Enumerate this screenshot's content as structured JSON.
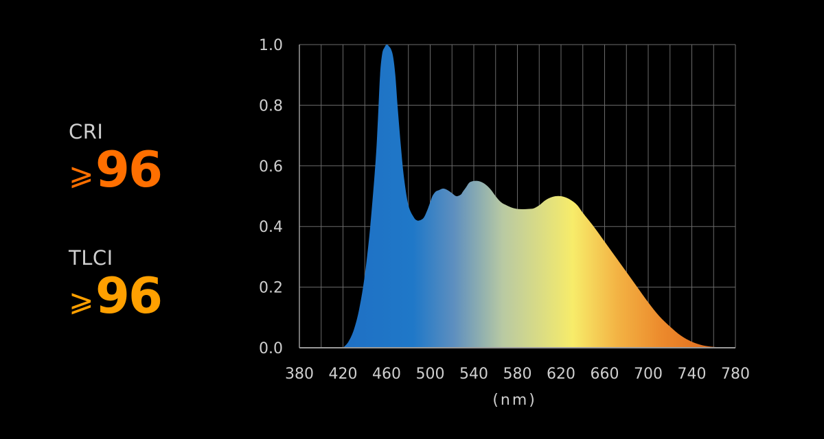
{
  "metrics": [
    {
      "label": "CRI",
      "symbol": "⩾",
      "value": "96",
      "color": "#ff6f00"
    },
    {
      "label": "TLCI",
      "symbol": "⩾",
      "value": "96",
      "color": "#ffa000"
    }
  ],
  "chart_data": {
    "type": "area",
    "title": "",
    "xlabel": "(nm)",
    "ylabel": "",
    "xlim": [
      380,
      780
    ],
    "ylim": [
      0,
      1.0
    ],
    "grid": true,
    "x_ticks": [
      "380",
      "420",
      "460",
      "500",
      "540",
      "580",
      "620",
      "660",
      "700",
      "740",
      "780"
    ],
    "y_ticks": [
      "0.0",
      "0.2",
      "0.4",
      "0.6",
      "0.8",
      "1.0"
    ],
    "series": [
      {
        "x": [
          420,
          425,
          430,
          435,
          440,
          445,
          450,
          452,
          454,
          456,
          458,
          460,
          462,
          464,
          466,
          468,
          470,
          473,
          476,
          480,
          485,
          488,
          490,
          493,
          495,
          498,
          500,
          502,
          505,
          508,
          512,
          516,
          520,
          524,
          528,
          530,
          533,
          536,
          540,
          544,
          548,
          552,
          556,
          560,
          565,
          570,
          575,
          580,
          585,
          590,
          595,
          600,
          605,
          610,
          615,
          620,
          625,
          630,
          635,
          640,
          650,
          660,
          670,
          680,
          690,
          700,
          710,
          720,
          730,
          740,
          750,
          760,
          770,
          780
        ],
        "y": [
          0.0,
          0.02,
          0.06,
          0.13,
          0.24,
          0.4,
          0.62,
          0.75,
          0.9,
          0.97,
          0.99,
          1.0,
          0.995,
          0.985,
          0.96,
          0.9,
          0.8,
          0.67,
          0.56,
          0.47,
          0.43,
          0.42,
          0.42,
          0.425,
          0.435,
          0.46,
          0.48,
          0.5,
          0.515,
          0.52,
          0.525,
          0.52,
          0.51,
          0.5,
          0.505,
          0.515,
          0.53,
          0.545,
          0.55,
          0.55,
          0.545,
          0.535,
          0.52,
          0.5,
          0.48,
          0.47,
          0.462,
          0.458,
          0.457,
          0.458,
          0.46,
          0.47,
          0.485,
          0.495,
          0.5,
          0.5,
          0.495,
          0.485,
          0.47,
          0.445,
          0.4,
          0.35,
          0.3,
          0.25,
          0.2,
          0.15,
          0.105,
          0.07,
          0.04,
          0.02,
          0.008,
          0.003,
          0.001,
          0.0
        ]
      }
    ],
    "colors": {
      "gradient": [
        "#1f70c4",
        "#1f78c8",
        "#5e8fbf",
        "#b8c9a3",
        "#f7ec6a",
        "#f3b344",
        "#ec8a2c",
        "#e06a1d"
      ],
      "grid": "#6b6b6b",
      "baseline": "#9a9a9a"
    }
  }
}
